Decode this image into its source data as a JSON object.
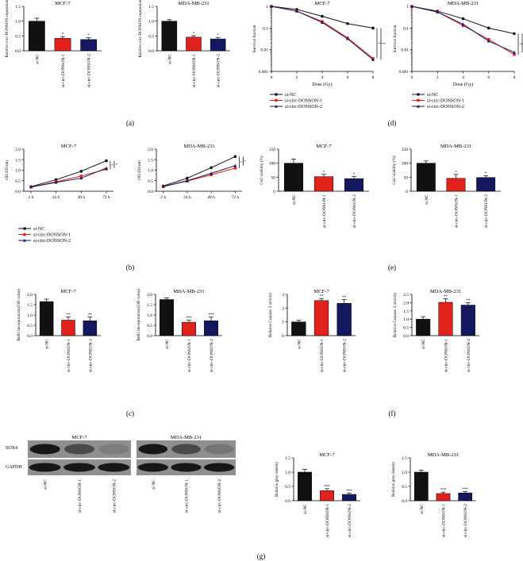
{
  "colors": {
    "black": "#111111",
    "red": "#e0211c",
    "navy": "#15185e"
  },
  "groups": [
    "si-NC",
    "si-circ-DONSON-1",
    "si-circ-DONSON-2"
  ],
  "panel_labels": [
    "(a)",
    "(b)",
    "(c)",
    "(d)",
    "(e)",
    "(f)",
    "(g)"
  ],
  "legend": [
    "si-NC",
    "si-circ-DONSON-1",
    "si-circ-DONSON-2"
  ],
  "blot": {
    "panel_label": "(g)",
    "titles": [
      "MCF-7",
      "MDA-MB-231"
    ],
    "rows": [
      "SOX4",
      "GAPDH"
    ],
    "lane_labels": [
      "si-NC",
      "si-circ-DONSON-1",
      "si-circ-DONSON-2"
    ]
  },
  "chart_data": [
    {
      "id": "a1",
      "type": "bar",
      "panel": "(a)",
      "title": "MCF-7",
      "ylabel": "Relative circ-DONSON expression",
      "ylim": [
        0,
        1.5
      ],
      "ticks": [
        "0.0",
        "0.5",
        "1.0",
        "1.5"
      ],
      "categories": [
        "si-NC",
        "si-circ-DONSON-1",
        "si-circ-DONSON-2"
      ],
      "values": [
        1.0,
        0.42,
        0.38
      ],
      "errors": [
        0.1,
        0.06,
        0.06
      ],
      "stars": [
        "",
        "*",
        "*"
      ]
    },
    {
      "id": "a2",
      "type": "bar",
      "panel": "(a)",
      "title": "MDA-MB-231",
      "ylabel": "Relative circ-DONSON expression",
      "ylim": [
        0,
        1.5
      ],
      "ticks": [
        "0.0",
        "0.5",
        "1.0",
        "1.5"
      ],
      "categories": [
        "si-NC",
        "si-circ-DONSON-1",
        "si-circ-DONSON-2"
      ],
      "values": [
        1.0,
        0.46,
        0.4
      ],
      "errors": [
        0.05,
        0.05,
        0.05
      ],
      "stars": [
        "",
        "*",
        "*"
      ]
    },
    {
      "id": "d1",
      "type": "line",
      "panel": "(d)",
      "title": "MCF-7",
      "log": true,
      "xlabel": "Dose (Gy)",
      "ylabel": "Survival fraction",
      "x": [
        0,
        2,
        4,
        6,
        8
      ],
      "xticks": [
        "0",
        "2",
        "4",
        "6",
        "8"
      ],
      "ylim": [
        0.001,
        1
      ],
      "ticks": [
        "0.001",
        "0.01",
        "0.1",
        "1"
      ],
      "series": [
        {
          "name": "si-NC",
          "values": [
            1.0,
            0.72,
            0.35,
            0.16,
            0.1
          ]
        },
        {
          "name": "si-circ-DONSON-1",
          "values": [
            1.0,
            0.6,
            0.2,
            0.035,
            0.004
          ]
        },
        {
          "name": "si-circ-DONSON-2",
          "values": [
            1.0,
            0.6,
            0.18,
            0.032,
            0.0035
          ]
        }
      ],
      "sig": [
        "**",
        "**"
      ]
    },
    {
      "id": "d2",
      "type": "line",
      "panel": "(d)",
      "title": "MDA-MB-231",
      "log": true,
      "xlabel": "Dose (Gy)",
      "ylabel": "Survival fraction",
      "x": [
        0,
        2,
        4,
        6,
        8
      ],
      "xticks": [
        "0",
        "2",
        "4",
        "6",
        "8"
      ],
      "ylim": [
        0.001,
        1
      ],
      "ticks": [
        "0.001",
        "0.01",
        "0.1",
        "1"
      ],
      "series": [
        {
          "name": "si-NC",
          "values": [
            1.0,
            0.6,
            0.27,
            0.1,
            0.055
          ]
        },
        {
          "name": "si-circ-DONSON-1",
          "values": [
            1.0,
            0.55,
            0.13,
            0.03,
            0.006
          ]
        },
        {
          "name": "si-circ-DONSON-2",
          "values": [
            1.0,
            0.55,
            0.15,
            0.025,
            0.0075
          ]
        }
      ],
      "sig": [
        "**",
        "**"
      ]
    },
    {
      "id": "b1",
      "type": "line",
      "panel": "(b)",
      "title": "MCF-7",
      "ylabel": "OD 450 nm",
      "x": [
        0,
        1,
        2,
        3
      ],
      "xticks": [
        "2 h",
        "24 h",
        "48 h",
        "72 h"
      ],
      "ylim": [
        0,
        2.0
      ],
      "ticks": [
        "0.0",
        "0.5",
        "1.0",
        "1.5",
        "2.0"
      ],
      "series": [
        {
          "name": "si-NC",
          "values": [
            0.22,
            0.55,
            0.95,
            1.45
          ]
        },
        {
          "name": "si-circ-DONSON-1",
          "values": [
            0.2,
            0.45,
            0.72,
            1.05
          ]
        },
        {
          "name": "si-circ-DONSON-2",
          "values": [
            0.2,
            0.42,
            0.62,
            1.1
          ]
        }
      ],
      "sig": [
        "*",
        "*"
      ]
    },
    {
      "id": "b2",
      "type": "line",
      "panel": "(b)",
      "title": "MDA-MB-231",
      "ylabel": "OD 450 nm",
      "x": [
        0,
        1,
        2,
        3
      ],
      "xticks": [
        "2 h",
        "24 h",
        "48 h",
        "72 h"
      ],
      "ylim": [
        0,
        2.0
      ],
      "ticks": [
        "0.0",
        "0.5",
        "1.0",
        "1.5",
        "2.0"
      ],
      "series": [
        {
          "name": "si-NC",
          "values": [
            0.25,
            0.62,
            1.12,
            1.65
          ]
        },
        {
          "name": "si-circ-DONSON-1",
          "values": [
            0.22,
            0.48,
            0.78,
            1.1
          ]
        },
        {
          "name": "si-circ-DONSON-2",
          "values": [
            0.22,
            0.5,
            0.85,
            1.22
          ]
        }
      ],
      "sig": [
        "*",
        "*"
      ]
    },
    {
      "id": "e1",
      "type": "bar",
      "panel": "(e)",
      "title": "MCF-7",
      "ylabel": "Cell viability (%)",
      "ylim": [
        0,
        150
      ],
      "ticks": [
        "0",
        "50",
        "100",
        "150"
      ],
      "categories": [
        "si-NC",
        "si-circ-DONSON-1",
        "si-circ-DONSON-2"
      ],
      "values": [
        100,
        52,
        45
      ],
      "errors": [
        15,
        8,
        8
      ],
      "stars": [
        "",
        "*",
        "*"
      ]
    },
    {
      "id": "e2",
      "type": "bar",
      "panel": "(e)",
      "title": "MDA-MB-231",
      "ylabel": "Cell viability (%)",
      "ylim": [
        0,
        150
      ],
      "ticks": [
        "0",
        "50",
        "100",
        "150"
      ],
      "categories": [
        "si-NC",
        "si-circ-DONSON-1",
        "si-circ-DONSON-2"
      ],
      "values": [
        100,
        46,
        49
      ],
      "errors": [
        8,
        14,
        6
      ],
      "stars": [
        "",
        "*",
        "*"
      ]
    },
    {
      "id": "c1",
      "type": "bar",
      "panel": "(c)",
      "title": "MCF-7",
      "ylabel": "BrdU incorporation (OD value)",
      "ylim": [
        0,
        2.0
      ],
      "ticks": [
        "0.0",
        "0.5",
        "1.0",
        "1.5",
        "2.0"
      ],
      "categories": [
        "si-NC",
        "si-circ-DONSON-1",
        "si-circ-DONSON-2"
      ],
      "values": [
        1.65,
        0.75,
        0.72
      ],
      "errors": [
        0.12,
        0.15,
        0.18
      ],
      "stars": [
        "",
        "**",
        "**"
      ]
    },
    {
      "id": "c2",
      "type": "bar",
      "panel": "(c)",
      "title": "MDA-MB-231",
      "ylabel": "BrdU incorporation (OD value)",
      "ylim": [
        0,
        2.0
      ],
      "ticks": [
        "0.0",
        "0.5",
        "1.0",
        "1.5",
        "2.0"
      ],
      "categories": [
        "si-NC",
        "si-circ-DONSON-1",
        "si-circ-DONSON-2"
      ],
      "values": [
        1.75,
        0.65,
        0.72
      ],
      "errors": [
        0.08,
        0.1,
        0.18
      ],
      "stars": [
        "",
        "***",
        "***"
      ]
    },
    {
      "id": "f1",
      "type": "bar",
      "panel": "(f)",
      "title": "MCF-7",
      "ylabel": "Relative Caspase 3 activity",
      "ylim": [
        0,
        3
      ],
      "ticks": [
        "0",
        "1",
        "2",
        "3"
      ],
      "categories": [
        "si-NC",
        "si-circ-DONSON-1",
        "si-circ-DONSON-2"
      ],
      "values": [
        1.0,
        2.55,
        2.35
      ],
      "errors": [
        0.12,
        0.15,
        0.28
      ],
      "stars": [
        "",
        "**",
        "**"
      ]
    },
    {
      "id": "f2",
      "type": "bar",
      "panel": "(f)",
      "title": "MDA-MB-231",
      "ylabel": "Relative Caspase 3 activity",
      "ylim": [
        0,
        2.5
      ],
      "ticks": [
        "0.0",
        "0.5",
        "1.0",
        "1.5",
        "2.0",
        "2.5"
      ],
      "categories": [
        "si-NC",
        "si-circ-DONSON-1",
        "si-circ-DONSON-2"
      ],
      "values": [
        1.0,
        2.02,
        1.85
      ],
      "errors": [
        0.15,
        0.22,
        0.15
      ],
      "stars": [
        "",
        "**",
        "**"
      ]
    },
    {
      "id": "g1",
      "type": "bar",
      "panel": "(g)",
      "title": "MCF-7",
      "ylabel": "Relative grey density",
      "ylim": [
        0,
        1.5
      ],
      "ticks": [
        "0.0",
        "0.5",
        "1.0",
        "1.5"
      ],
      "categories": [
        "si-NC",
        "si-circ-DONSON-1",
        "si-circ-DONSON-2"
      ],
      "values": [
        1.0,
        0.35,
        0.22
      ],
      "errors": [
        0.1,
        0.07,
        0.04
      ],
      "stars": [
        "",
        "***",
        "***"
      ]
    },
    {
      "id": "g2",
      "type": "bar",
      "panel": "(g)",
      "title": "MDA-MB-231",
      "ylabel": "Relative grey density",
      "ylim": [
        0,
        1.5
      ],
      "ticks": [
        "0.0",
        "0.5",
        "1.0",
        "1.5"
      ],
      "categories": [
        "si-NC",
        "si-circ-DONSON-1",
        "si-circ-DONSON-2"
      ],
      "values": [
        1.0,
        0.25,
        0.27
      ],
      "errors": [
        0.07,
        0.05,
        0.05
      ],
      "stars": [
        "",
        "***",
        "***"
      ]
    }
  ]
}
